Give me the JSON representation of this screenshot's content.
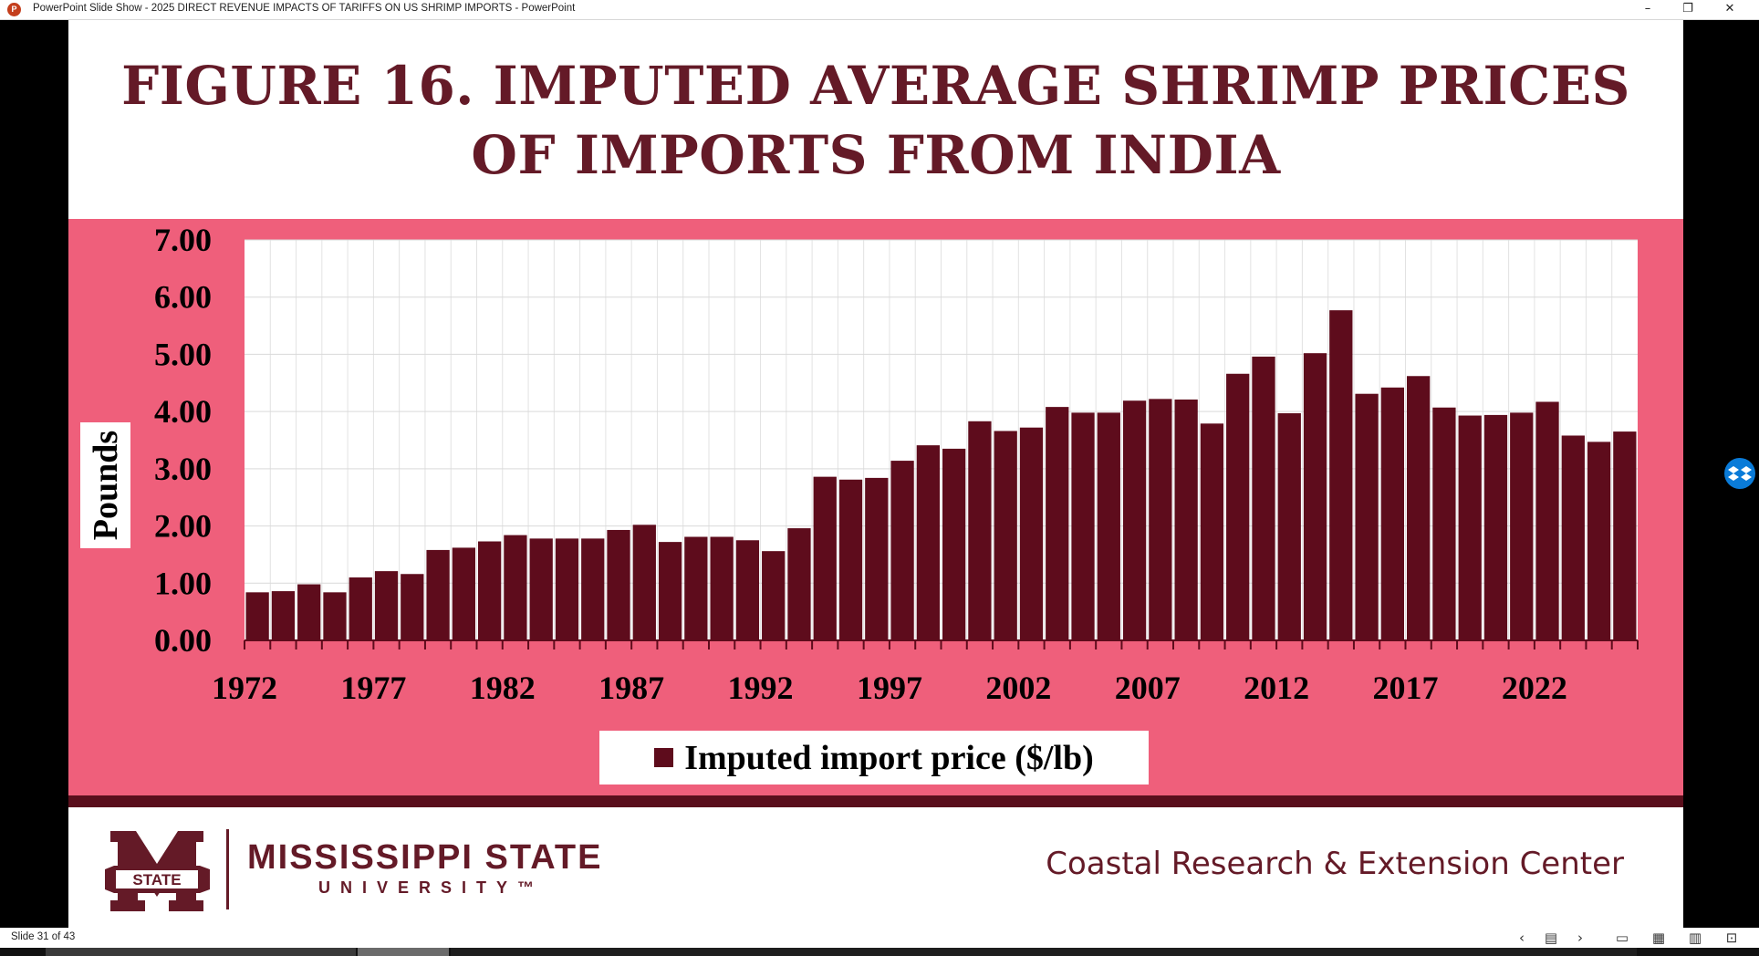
{
  "window": {
    "title": "PowerPoint Slide Show  -  2025 DIRECT REVENUE IMPACTS OF TARIFFS ON US SHRIMP IMPORTS - PowerPoint",
    "app_icon": "powerpoint-icon",
    "minimize": "–",
    "restore": "❐",
    "close": "✕"
  },
  "slide": {
    "title_line1": "FIGURE 16. IMPUTED AVERAGE SHRIMP PRICES",
    "title_line2": "OF IMPORTS FROM INDIA",
    "footer": {
      "logo_letter": "M",
      "logo_badge": "STATE",
      "university_name": "MISSISSIPPI STATE",
      "university_sub": "UNIVERSITY™",
      "center_name": "Coastal Research & Extension Center"
    }
  },
  "chart_data": {
    "type": "bar",
    "title": "FIGURE 16. IMPUTED AVERAGE SHRIMP PRICES OF IMPORTS FROM INDIA",
    "ylabel": "Pounds",
    "xlabel": "",
    "ylim": [
      0,
      7
    ],
    "ytick_labels": [
      "0.00",
      "1.00",
      "2.00",
      "3.00",
      "4.00",
      "5.00",
      "6.00",
      "7.00"
    ],
    "xtick_labels": [
      "1972",
      "1977",
      "1982",
      "1987",
      "1992",
      "1997",
      "2002",
      "2007",
      "2012",
      "2017",
      "2022"
    ],
    "grid": true,
    "legend_position": "bottom",
    "bar_color": "#5e0c1c",
    "x": [
      1972,
      1973,
      1974,
      1975,
      1976,
      1977,
      1978,
      1979,
      1980,
      1981,
      1982,
      1983,
      1984,
      1985,
      1986,
      1987,
      1988,
      1989,
      1990,
      1991,
      1992,
      1993,
      1994,
      1995,
      1996,
      1997,
      1998,
      1999,
      2000,
      2001,
      2002,
      2003,
      2004,
      2005,
      2006,
      2007,
      2008,
      2009,
      2010,
      2011,
      2012,
      2013,
      2014,
      2015,
      2016,
      2017,
      2018,
      2019,
      2020,
      2021,
      2022,
      2023,
      2024,
      2025
    ],
    "series": [
      {
        "name": "Imputed import price ($/lb)",
        "values": [
          0.84,
          0.86,
          0.98,
          0.84,
          1.1,
          1.21,
          1.16,
          1.58,
          1.62,
          1.73,
          1.84,
          1.78,
          1.78,
          1.78,
          1.93,
          2.02,
          1.72,
          1.81,
          1.81,
          1.75,
          1.56,
          1.96,
          2.86,
          2.81,
          2.84,
          3.14,
          3.41,
          3.35,
          3.83,
          3.66,
          3.72,
          4.08,
          3.98,
          3.98,
          4.19,
          4.22,
          4.21,
          3.79,
          4.66,
          4.96,
          3.97,
          5.02,
          5.77,
          4.31,
          4.42,
          4.62,
          4.07,
          3.93,
          3.94,
          3.98,
          4.17,
          3.58,
          3.47,
          3.65
        ]
      }
    ]
  },
  "statusbar": {
    "slide_counter": "Slide 31 of 43",
    "prev_icon": "chevron-left-icon",
    "menu_icon": "slide-menu-icon",
    "next_icon": "chevron-right-icon"
  }
}
